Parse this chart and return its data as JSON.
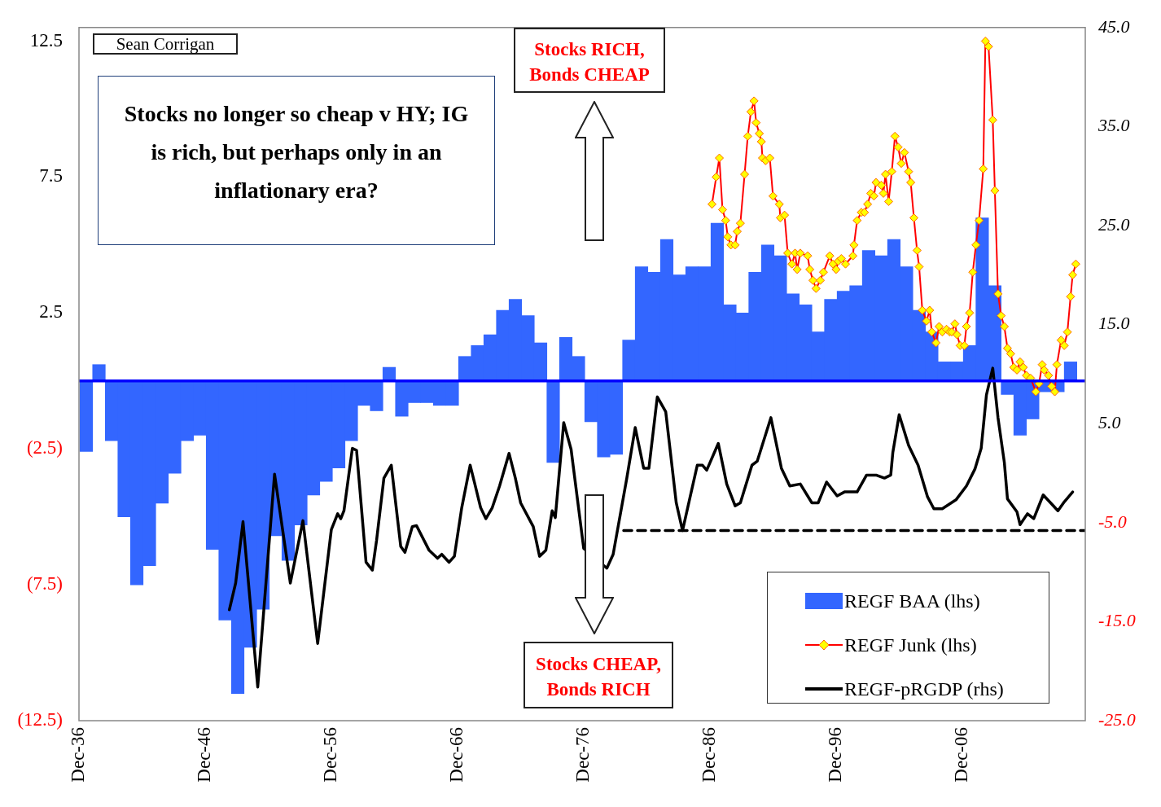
{
  "chart_data": {
    "type": "bar",
    "legend": "bottom right",
    "xlim": [
      "1936-12",
      "2016-09"
    ],
    "xticks": [
      {
        "value": "1936-12",
        "label": "Dec-36"
      },
      {
        "value": "1946-12",
        "label": "Dec-46"
      },
      {
        "value": "1956-12",
        "label": "Dec-56"
      },
      {
        "value": "1966-12",
        "label": "Dec-66"
      },
      {
        "value": "1976-12",
        "label": "Dec-76"
      },
      {
        "value": "1986-12",
        "label": "Dec-86"
      },
      {
        "value": "1996-12",
        "label": "Dec-96"
      },
      {
        "value": "2006-12",
        "label": "Dec-06"
      }
    ],
    "ylim": [
      -12.5,
      13
    ],
    "yticks": [
      {
        "value": -12.5,
        "label": "(12.5)"
      },
      {
        "value": -7.5,
        "label": "(7.5)"
      },
      {
        "value": -2.5,
        "label": "(2.5)"
      },
      2.5,
      7.5,
      12.5
    ],
    "y2lim": [
      -25,
      45
    ],
    "y2ticks": [
      {
        "value": -25,
        "label": "-25.0"
      },
      {
        "value": -15,
        "label": "-15.0"
      },
      {
        "value": -5,
        "label": "-5.0"
      },
      {
        "value": 5,
        "label": "5.0"
      },
      {
        "value": 15,
        "label": "15.0"
      },
      {
        "value": 25,
        "label": "25.0"
      },
      {
        "value": 35,
        "label": "35.0"
      },
      {
        "value": 45,
        "label": "45.0"
      }
    ],
    "ref_lines": [
      {
        "axis": "y",
        "value": 0,
        "color": "#0000ff"
      }
    ],
    "annotations": [
      "Sean Corrigan",
      "Stocks no longer so cheap v HY; IG is rich, but perhaps only in an inflationary era?",
      "Stocks RICH, Bonds CHEAP",
      "Stocks CHEAP, Bonds RICH"
    ],
    "series": [
      {
        "name": "REGF BAA (lhs)",
        "color": "#3366ff",
        "x": [
          "1937-07",
          "1938-07",
          "1939-07",
          "1940-07",
          "1941-07",
          "1942-07",
          "1943-07",
          "1944-07",
          "1945-07",
          "1946-07",
          "1947-07",
          "1948-07",
          "1949-07",
          "1950-07",
          "1951-07",
          "1952-07",
          "1953-07",
          "1954-07",
          "1955-07",
          "1956-07",
          "1957-07",
          "1958-07",
          "1959-07",
          "1960-07",
          "1961-07",
          "1962-07",
          "1963-07",
          "1964-07",
          "1965-07",
          "1966-07",
          "1967-07",
          "1968-07",
          "1969-07",
          "1970-07",
          "1971-07",
          "1972-07",
          "1973-07",
          "1974-07",
          "1975-07",
          "1976-07",
          "1977-07",
          "1978-07",
          "1979-07",
          "1980-07",
          "1981-07",
          "1982-07",
          "1983-07",
          "1984-07",
          "1985-07",
          "1986-07",
          "1987-07",
          "1988-07",
          "1989-07",
          "1990-07",
          "1991-07",
          "1992-07",
          "1993-07",
          "1994-07",
          "1995-07",
          "1996-07",
          "1997-07",
          "1998-07",
          "1999-07",
          "2000-07",
          "2001-07",
          "2002-07",
          "2003-07",
          "2004-07",
          "2005-07",
          "2006-07",
          "2007-07",
          "2008-07",
          "2009-07",
          "2010-07",
          "2011-07",
          "2012-07",
          "2013-07",
          "2014-07",
          "2015-07"
        ],
        "values": [
          -2.6,
          0.6,
          -2.2,
          -5.0,
          -7.5,
          -6.8,
          -4.5,
          -3.4,
          -2.2,
          -2.0,
          -6.2,
          -8.8,
          -11.5,
          -9.8,
          -8.4,
          -5.7,
          -6.6,
          -5.3,
          -4.2,
          -3.7,
          -3.2,
          -2.2,
          -0.9,
          -1.1,
          0.5,
          -1.3,
          -0.8,
          -0.8,
          -0.9,
          -0.9,
          0.9,
          1.3,
          1.7,
          2.6,
          3.0,
          2.4,
          1.4,
          -3.0,
          1.6,
          0.9,
          -1.5,
          -2.8,
          -2.7,
          1.5,
          4.2,
          4.0,
          5.2,
          3.9,
          4.2,
          4.2,
          5.8,
          2.8,
          2.5,
          4.0,
          5.0,
          4.6,
          3.2,
          2.8,
          1.8,
          3.0,
          3.3,
          3.5,
          4.8,
          4.6,
          5.2,
          4.2,
          2.6,
          1.8,
          0.7,
          0.7,
          1.3,
          6.0,
          3.5,
          -0.5,
          -2.0,
          -1.4,
          -0.4,
          -0.4,
          0.7
        ]
      },
      {
        "name": "REGF Junk (lhs)",
        "type": "line",
        "color": "#ff0000",
        "marker": "diamond",
        "x": [
          "1987-02",
          "1987-06",
          "1987-09",
          "1987-12",
          "1988-03",
          "1988-05",
          "1988-08",
          "1988-12",
          "1989-02",
          "1989-05",
          "1989-09",
          "1989-12",
          "1990-03",
          "1990-06",
          "1990-08",
          "1990-11",
          "1991-01",
          "1991-02",
          "1991-05",
          "1991-09",
          "1991-12",
          "1992-06",
          "1992-07",
          "1992-11",
          "1993-02",
          "1993-06",
          "1993-09",
          "1993-11",
          "1994-02",
          "1994-09",
          "1994-11",
          "1995-02",
          "1995-05",
          "1995-09",
          "1995-12",
          "1996-06",
          "1996-09",
          "1996-12",
          "1997-02",
          "1997-05",
          "1997-09",
          "1998-04",
          "1998-05",
          "1998-08",
          "1998-12",
          "1999-03",
          "1999-06",
          "1999-09",
          "1999-12",
          "2000-02",
          "2000-07",
          "2000-09",
          "2000-11",
          "2001-02",
          "2001-05",
          "2001-08",
          "2001-11",
          "2002-02",
          "2002-05",
          "2002-09",
          "2002-11",
          "2003-02",
          "2003-05",
          "2003-07",
          "2003-10",
          "2004-02",
          "2004-05",
          "2004-07",
          "2004-11",
          "2005-02",
          "2005-05",
          "2005-09",
          "2005-12",
          "2006-02",
          "2006-05",
          "2006-07",
          "2006-10",
          "2007-02",
          "2007-04",
          "2007-07",
          "2007-10",
          "2008-01",
          "2008-04",
          "2008-08",
          "2008-10",
          "2009-01",
          "2009-05",
          "2009-07",
          "2009-10",
          "2010-01",
          "2010-04",
          "2010-07",
          "2010-10",
          "2011-01",
          "2011-04",
          "2011-07",
          "2011-10",
          "2012-01",
          "2012-05",
          "2012-10",
          "2013-01",
          "2013-04",
          "2013-06",
          "2013-10",
          "2014-01",
          "2014-04",
          "2014-06",
          "2014-10",
          "2015-01",
          "2015-04",
          "2015-07",
          "2015-09",
          "2015-12"
        ],
        "values": [
          6.5,
          7.5,
          8.2,
          6.3,
          5.9,
          5.3,
          5.0,
          5.0,
          5.5,
          5.8,
          7.6,
          9.0,
          9.9,
          10.3,
          9.5,
          9.1,
          8.8,
          8.2,
          8.1,
          8.2,
          6.8,
          6.5,
          6.0,
          6.1,
          4.7,
          4.3,
          4.7,
          4.1,
          4.7,
          4.6,
          4.1,
          3.7,
          3.4,
          3.7,
          4.0,
          4.6,
          4.3,
          4.1,
          4.4,
          4.5,
          4.3,
          4.6,
          5.0,
          5.9,
          6.2,
          6.2,
          6.5,
          6.9,
          6.8,
          7.3,
          7.2,
          6.9,
          7.6,
          6.6,
          7.7,
          9.0,
          8.6,
          8.0,
          8.4,
          7.7,
          7.3,
          6.0,
          4.8,
          4.2,
          2.6,
          2.2,
          2.6,
          1.8,
          1.4,
          2.0,
          1.8,
          1.9,
          1.8,
          1.8,
          2.1,
          1.7,
          1.3,
          1.3,
          2.0,
          2.5,
          4.0,
          5.0,
          5.9,
          7.8,
          12.5,
          12.3,
          9.6,
          7.0,
          3.2,
          2.4,
          2.0,
          1.2,
          1.0,
          0.5,
          0.4,
          0.7,
          0.5,
          0.2,
          0.1,
          -0.4,
          -0.1,
          0.6,
          0.4,
          0.2,
          -0.2,
          -0.4,
          0.6,
          1.5,
          1.3,
          1.8,
          3.1,
          3.9,
          4.3
        ]
      },
      {
        "name": "REGF-pRGDP (rhs)",
        "type": "line",
        "axis": "y2",
        "color": "#000000",
        "x": [
          "1948-11",
          "1949-05",
          "1949-12",
          "1951-02",
          "1952-06",
          "1953-09",
          "1954-09",
          "1955-11",
          "1956-12",
          "1957-06",
          "1957-09",
          "1957-12",
          "1958-08",
          "1958-12",
          "1959-09",
          "1960-03",
          "1960-07",
          "1961-02",
          "1961-09",
          "1962-06",
          "1962-10",
          "1963-05",
          "1963-09",
          "1964-09",
          "1965-05",
          "1965-09",
          "1966-04",
          "1966-09",
          "1967-04",
          "1967-12",
          "1968-04",
          "1968-10",
          "1969-03",
          "1969-09",
          "1970-04",
          "1971-01",
          "1971-07",
          "1971-12",
          "1972-12",
          "1973-06",
          "1973-12",
          "1974-06",
          "1974-09",
          "1975-05",
          "1975-12",
          "1976-12",
          "1978-10",
          "1979-04",
          "1980-05",
          "1981-01",
          "1981-09",
          "1982-02",
          "1982-10",
          "1983-06",
          "1984-04",
          "1984-10",
          "1985-05",
          "1985-12",
          "1986-05",
          "1986-09",
          "1987-08",
          "1988-04",
          "1988-12",
          "1989-05",
          "1990-04",
          "1990-09",
          "1991-10",
          "1992-08",
          "1993-04",
          "1994-02",
          "1995-01",
          "1995-07",
          "1996-03",
          "1997-01",
          "1997-08",
          "1998-08",
          "1999-05",
          "2000-02",
          "2000-10",
          "2001-04",
          "2001-06",
          "2001-12",
          "2002-09",
          "2003-06",
          "2004-03",
          "2004-09",
          "2005-05",
          "2006-06",
          "2007-04",
          "2007-12",
          "2008-06",
          "2008-11",
          "2009-05",
          "2009-10",
          "2010-04",
          "2010-07",
          "2011-04",
          "2011-07",
          "2012-02",
          "2012-08",
          "2013-05",
          "2014-07",
          "2015-01",
          "2015-09"
        ],
        "values": [
          -13.8,
          -11.1,
          -4.9,
          -21.6,
          -0.1,
          -11.1,
          -4.8,
          -17.2,
          -5.7,
          -4.1,
          -4.6,
          -3.8,
          2.5,
          2.3,
          -9.0,
          -9.8,
          -6.8,
          -0.5,
          0.8,
          -7.4,
          -8.0,
          -5.4,
          -5.3,
          -7.8,
          -8.6,
          -8.2,
          -9.0,
          -8.4,
          -3.5,
          0.8,
          -0.9,
          -3.5,
          -4.6,
          -3.5,
          -1.3,
          2.0,
          -0.5,
          -3.0,
          -5.4,
          -8.4,
          -7.8,
          -3.8,
          -4.5,
          5.1,
          2.4,
          -7.6,
          -9.6,
          -8.2,
          -0.5,
          4.6,
          0.5,
          0.5,
          7.7,
          6.2,
          -3.0,
          -5.8,
          -2.5,
          0.8,
          0.8,
          0.3,
          3.0,
          -1.1,
          -3.3,
          -3.0,
          0.8,
          1.2,
          5.6,
          0.5,
          -1.3,
          -1.1,
          -3.0,
          -3.0,
          -0.9,
          -2.3,
          -1.9,
          -1.9,
          -0.2,
          -0.2,
          -0.5,
          -0.2,
          2.1,
          5.9,
          2.8,
          0.8,
          -2.4,
          -3.6,
          -3.6,
          -2.7,
          -1.3,
          0.4,
          2.5,
          7.9,
          10.6,
          5.6,
          1.1,
          -2.6,
          -3.9,
          -5.2,
          -4.1,
          -4.6,
          -2.2,
          -3.8,
          -2.9,
          -1.9
        ]
      },
      {
        "type": "line",
        "axis": "y2",
        "color": "#000000",
        "line_style": "dashed",
        "x": [
          "1980-02",
          "2016-09"
        ],
        "values": [
          -5.8,
          -5.8
        ]
      }
    ]
  }
}
